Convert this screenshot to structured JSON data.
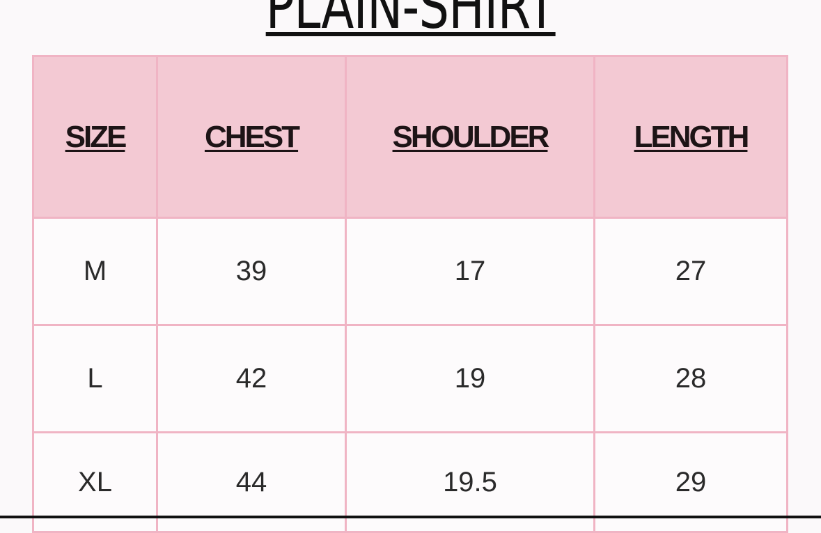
{
  "title": "PLAIN-SHIRT",
  "table": {
    "headers": [
      "SIZE",
      "CHEST",
      "SHOULDER",
      "LENGTH"
    ],
    "rows": [
      [
        "M",
        "39",
        "17",
        "27"
      ],
      [
        "L",
        "42",
        "19",
        "28"
      ],
      [
        "XL",
        "44",
        "19.5",
        "29"
      ]
    ]
  },
  "colors": {
    "header_bg": "#f3c9d3",
    "border": "#f0b4c4",
    "text": "#1d1416"
  }
}
